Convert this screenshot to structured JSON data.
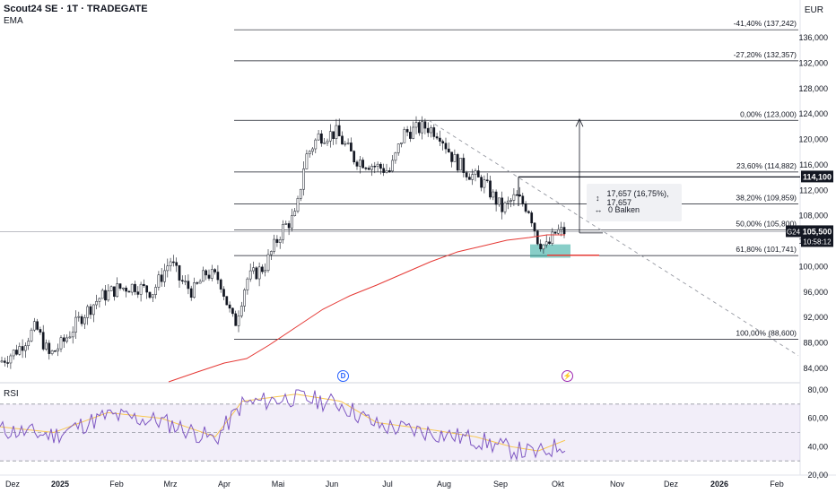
{
  "header": {
    "title": "Scout24 SE · 1T · TRADEGATE",
    "indicator": "EMA",
    "currency": "EUR",
    "rsi_label": "RSI"
  },
  "price_axis": {
    "labels": [
      "136,000",
      "132,000",
      "128,000",
      "124,000",
      "120,000",
      "116,000",
      "112,000",
      "108,000",
      "104,000",
      "100,000",
      "96,000",
      "92,000",
      "88,000",
      "84,000"
    ]
  },
  "rsi_axis": {
    "labels": [
      "80,00",
      "60,00",
      "40,00",
      "20,00"
    ]
  },
  "time_axis": {
    "labels": [
      "Dez",
      "2025",
      "Feb",
      "Mrz",
      "Apr",
      "Mai",
      "Jun",
      "Jul",
      "Aug",
      "Sep",
      "Okt",
      "Nov",
      "Dez",
      "2026",
      "Feb"
    ]
  },
  "fib_levels": [
    {
      "label": "-41,40% (137,242)"
    },
    {
      "label": "-27,20% (132,357)"
    },
    {
      "label": "0,00% (123,000)"
    },
    {
      "label": "23,60% (114,882)"
    },
    {
      "label": "38,20% (109,859)"
    },
    {
      "label": "50,00% (105,800)"
    },
    {
      "label": "61,80% (101,741)"
    },
    {
      "label": "100,00% (88,600)"
    }
  ],
  "badges": {
    "level_price": "114,100",
    "symbol": "G24",
    "last_price": "105,500",
    "countdown": "10:58:12"
  },
  "measure_box": {
    "line1": "17,657 (16,75%), 17,657",
    "line2": "0 Balken"
  },
  "events": {
    "dividend": "D",
    "earnings": "⚡"
  },
  "colors": {
    "ema": "#e53935",
    "rsi": "#7e57c2",
    "rsi_ma": "#f9c74f",
    "candle": "#131722",
    "zone": "#26a69a"
  }
}
